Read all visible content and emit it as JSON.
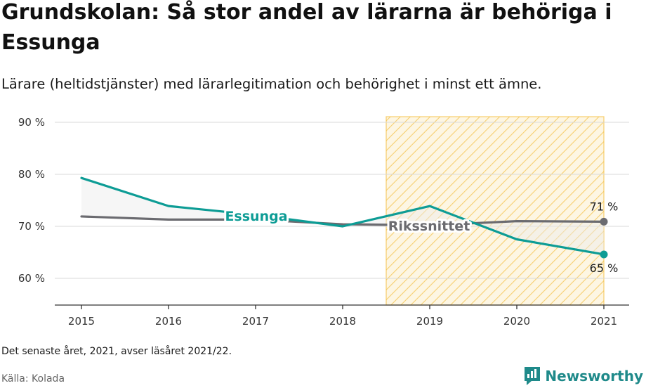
{
  "title": "Grundskolan: Så stor andel av lärarna är behöriga i Essunga",
  "subtitle": "Lärare (heltidstjänster) med lärarlegitimation och behörighet i minst ett ämne.",
  "note": "Det senaste året, 2021, avser läsåret 2021/22.",
  "source": "Källa: Kolada",
  "brand": {
    "name": "Newsworthy",
    "icon": "newsworthy-logo-icon"
  },
  "colors": {
    "essunga": "#0d9c95",
    "riket": "#6b6b70",
    "highlight": "#f5c24a"
  },
  "chart_data": {
    "type": "line",
    "x": [
      2015,
      2016,
      2017,
      2018,
      2019,
      2020,
      2021
    ],
    "ylim": [
      55,
      91
    ],
    "yticks": [
      60,
      70,
      80,
      90
    ],
    "ytick_labels": [
      "60 %",
      "70 %",
      "80 %",
      "90 %"
    ],
    "xtick_labels": [
      "2015",
      "2016",
      "2017",
      "2018",
      "2019",
      "2020",
      "2021"
    ],
    "grid": true,
    "highlight_range": [
      2018.5,
      2021
    ],
    "series": [
      {
        "name": "Essunga",
        "values": [
          79.3,
          73.9,
          72.2,
          70.0,
          73.9,
          67.5,
          64.6
        ],
        "end_label": "65 %"
      },
      {
        "name": "Rikssnittet",
        "values": [
          71.9,
          71.3,
          71.3,
          70.4,
          70.2,
          71.0,
          70.9
        ],
        "end_label": "71 %"
      }
    ]
  }
}
